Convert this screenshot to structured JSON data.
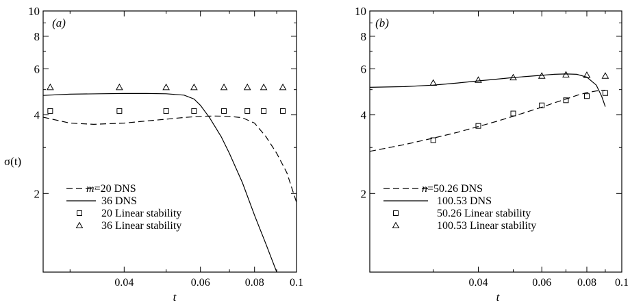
{
  "chart_data": [
    {
      "type": "line",
      "panel_label": "(a)",
      "xlabel": "t",
      "ylabel": "σ(t)",
      "xscale": "log",
      "yscale": "log",
      "xlim": [
        0.026,
        0.1
      ],
      "ylim": [
        1,
        10
      ],
      "xticks": [
        {
          "v": 0.04,
          "label": "0.04"
        },
        {
          "v": 0.06,
          "label": "0.06"
        },
        {
          "v": 0.08,
          "label": "0.08"
        },
        {
          "v": 0.1,
          "label": "0.1"
        }
      ],
      "yticks": [
        {
          "v": 2,
          "label": "2"
        },
        {
          "v": 4,
          "label": "4"
        },
        {
          "v": 6,
          "label": "6"
        },
        {
          "v": 8,
          "label": "8"
        },
        {
          "v": 10,
          "label": "10"
        }
      ],
      "legend_position": "bottom-left",
      "legend_prefix": "m =",
      "series": [
        {
          "name": "20 DNS",
          "style": "dashed",
          "kind": "line",
          "x": [
            0.026,
            0.03,
            0.034,
            0.04,
            0.045,
            0.05,
            0.055,
            0.06,
            0.065,
            0.07,
            0.075,
            0.08,
            0.085,
            0.09,
            0.095,
            0.1
          ],
          "y": [
            3.92,
            3.72,
            3.68,
            3.72,
            3.79,
            3.85,
            3.91,
            3.95,
            3.96,
            3.95,
            3.9,
            3.72,
            3.3,
            2.85,
            2.4,
            1.85
          ]
        },
        {
          "name": "36 DNS",
          "style": "solid",
          "kind": "line",
          "x": [
            0.026,
            0.03,
            0.035,
            0.04,
            0.045,
            0.05,
            0.055,
            0.058,
            0.06,
            0.063,
            0.067,
            0.07,
            0.075,
            0.08,
            0.085,
            0.09,
            0.092
          ],
          "y": [
            4.75,
            4.8,
            4.82,
            4.83,
            4.83,
            4.82,
            4.76,
            4.6,
            4.35,
            3.9,
            3.3,
            2.85,
            2.2,
            1.65,
            1.28,
            1.0,
            0.93
          ]
        },
        {
          "name": "20 Linear stability",
          "marker": "square",
          "kind": "scatter",
          "x": [
            0.027,
            0.039,
            0.05,
            0.058,
            0.068,
            0.077,
            0.084,
            0.093
          ],
          "y": [
            4.14,
            4.14,
            4.14,
            4.14,
            4.14,
            4.14,
            4.14,
            4.14
          ]
        },
        {
          "name": "36 Linear stability",
          "marker": "triangle",
          "kind": "scatter",
          "x": [
            0.027,
            0.039,
            0.05,
            0.058,
            0.068,
            0.077,
            0.084,
            0.093
          ],
          "y": [
            5.1,
            5.1,
            5.1,
            5.1,
            5.1,
            5.1,
            5.1,
            5.1
          ]
        }
      ]
    },
    {
      "type": "line",
      "panel_label": "(b)",
      "xlabel": "t",
      "ylabel": "",
      "xscale": "log",
      "yscale": "log",
      "xlim": [
        0.02,
        0.1
      ],
      "ylim": [
        1,
        10
      ],
      "xticks": [
        {
          "v": 0.04,
          "label": "0.04"
        },
        {
          "v": 0.06,
          "label": "0.06"
        },
        {
          "v": 0.08,
          "label": "0.08"
        },
        {
          "v": 0.1,
          "label": "0.1"
        }
      ],
      "yticks": [
        {
          "v": 2,
          "label": "2"
        },
        {
          "v": 4,
          "label": "4"
        },
        {
          "v": 6,
          "label": "6"
        },
        {
          "v": 8,
          "label": "8"
        },
        {
          "v": 10,
          "label": "10"
        }
      ],
      "legend_position": "bottom-left",
      "legend_prefix": "n =",
      "series": [
        {
          "name": "50.26 DNS",
          "style": "dashed",
          "kind": "line",
          "x": [
            0.02,
            0.025,
            0.03,
            0.035,
            0.04,
            0.045,
            0.05,
            0.055,
            0.06,
            0.065,
            0.07,
            0.075,
            0.08,
            0.085,
            0.09
          ],
          "y": [
            2.9,
            3.08,
            3.26,
            3.43,
            3.61,
            3.78,
            3.95,
            4.12,
            4.28,
            4.45,
            4.6,
            4.75,
            4.87,
            4.94,
            4.97
          ]
        },
        {
          "name": "100.53 DNS",
          "style": "solid",
          "kind": "line",
          "x": [
            0.02,
            0.025,
            0.03,
            0.035,
            0.04,
            0.045,
            0.05,
            0.055,
            0.06,
            0.065,
            0.07,
            0.075,
            0.08,
            0.085,
            0.088,
            0.09
          ],
          "y": [
            5.1,
            5.13,
            5.2,
            5.3,
            5.4,
            5.48,
            5.56,
            5.62,
            5.67,
            5.72,
            5.74,
            5.72,
            5.58,
            5.2,
            4.7,
            4.3
          ]
        },
        {
          "name": "50.26 Linear stability",
          "marker": "square",
          "kind": "scatter",
          "x": [
            0.03,
            0.04,
            0.05,
            0.06,
            0.07,
            0.08,
            0.09
          ],
          "y": [
            3.2,
            3.63,
            4.05,
            4.35,
            4.55,
            4.72,
            4.85
          ]
        },
        {
          "name": "100.53 Linear stability",
          "marker": "triangle",
          "kind": "scatter",
          "x": [
            0.03,
            0.04,
            0.05,
            0.06,
            0.07,
            0.08,
            0.09
          ],
          "y": [
            5.3,
            5.44,
            5.56,
            5.64,
            5.7,
            5.68,
            5.64
          ]
        }
      ]
    }
  ]
}
